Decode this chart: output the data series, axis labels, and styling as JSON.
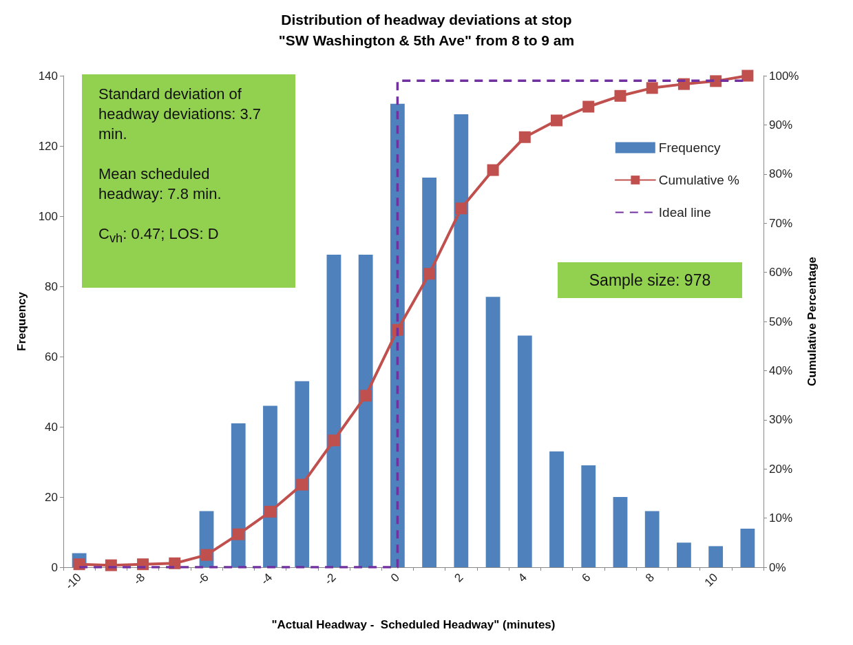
{
  "chart_data": {
    "type": "bar",
    "title": "Distribution of headway deviations at stop\n\"SW Washington & 5th Ave\" from 8 to 9 am",
    "xlabel": "\"Actual Headway -  Scheduled Headway\" (minutes)",
    "ylabel": "Frequency",
    "y2label": "Cumulative Percentage",
    "categories": [
      "-10",
      null,
      "-8",
      null,
      "-6",
      null,
      "-4",
      null,
      "-2",
      null,
      "0",
      null,
      "2",
      null,
      "4",
      null,
      "6",
      null,
      "8",
      null,
      "10",
      null
    ],
    "series": [
      {
        "name": "Frequency",
        "color": "#4f81bd",
        "values": [
          4,
          0,
          0,
          0,
          16,
          41,
          46,
          53,
          89,
          89,
          132,
          111,
          129,
          77,
          66,
          33,
          29,
          20,
          16,
          7,
          6,
          11
        ]
      },
      {
        "name": "Cumulative %",
        "type": "line",
        "axis": "y2",
        "color": "#c0504d",
        "marker": "square",
        "values": [
          0.6,
          0.4,
          0.6,
          0.8,
          2.5,
          6.7,
          11.3,
          16.8,
          25.8,
          34.9,
          48.3,
          59.7,
          73.0,
          80.8,
          87.5,
          90.9,
          93.7,
          95.9,
          97.5,
          98.3,
          98.9,
          100
        ]
      },
      {
        "name": "Ideal line",
        "type": "step",
        "axis": "y2",
        "color": "#7030a0",
        "line_style": "dashed",
        "marker": "none",
        "values": [
          0,
          0,
          0,
          0,
          0,
          0,
          0,
          0,
          0,
          0,
          99,
          99,
          99,
          99,
          99,
          99,
          99,
          99,
          99,
          99,
          99,
          99
        ]
      }
    ],
    "ylim": [
      0,
      140
    ],
    "yticks": [
      0,
      20,
      40,
      60,
      80,
      100,
      120,
      140
    ],
    "y2lim": [
      0,
      100
    ],
    "y2ticks": [
      {
        "value": 0,
        "label": "0%"
      },
      {
        "value": 10,
        "label": "10%"
      },
      {
        "value": 20,
        "label": "20%"
      },
      {
        "value": 30,
        "label": "30%"
      },
      {
        "value": 40,
        "label": "40%"
      },
      {
        "value": 50,
        "label": "50%"
      },
      {
        "value": 60,
        "label": "60%"
      },
      {
        "value": 70,
        "label": "70%"
      },
      {
        "value": 80,
        "label": "80%"
      },
      {
        "value": 90,
        "label": "90%"
      },
      {
        "value": 100,
        "label": "100%"
      }
    ],
    "grid": false,
    "legend": "top right",
    "annotations": [
      "Standard deviation of headway deviations: 3.7 min.",
      "Mean scheduled headway: 7.8 min.",
      "C$_{vh}$: 0.47;   LOS: D",
      "Sample size: 978"
    ]
  }
}
